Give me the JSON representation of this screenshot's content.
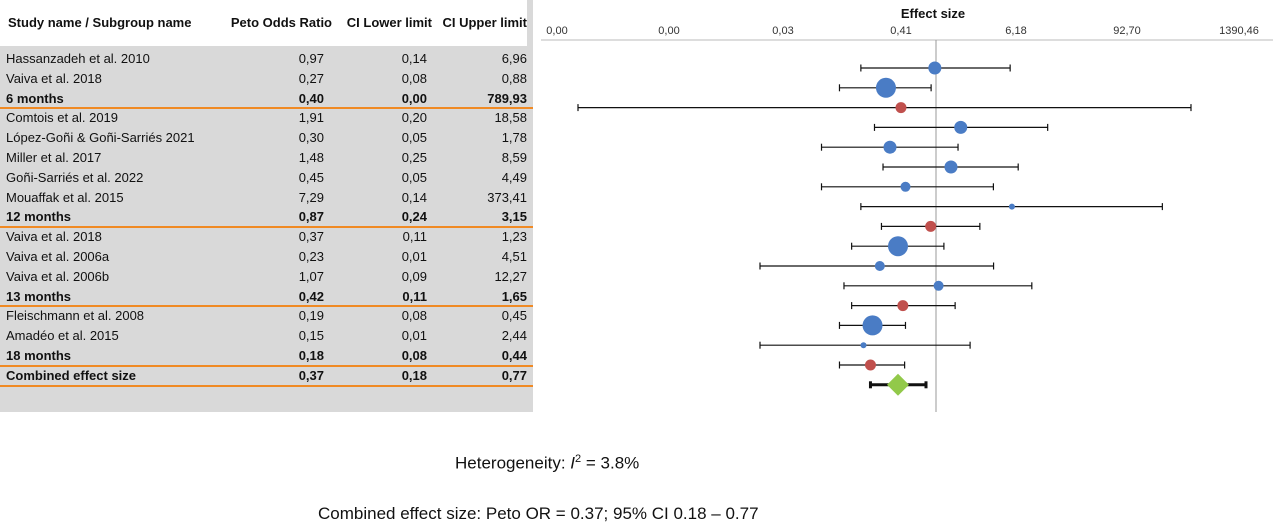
{
  "table": {
    "headers": {
      "name": "Study name / Subgroup name",
      "or": "Peto Odds Ratio",
      "lower": "CI Lower limit",
      "upper": "CI Upper limit"
    },
    "rows": [
      {
        "name": "Hassanzadeh et al. 2010",
        "or": "0,97",
        "lower": "0,14",
        "upper": "6,96",
        "type": "study"
      },
      {
        "name": "Vaiva et al. 2018",
        "or": "0,27",
        "lower": "0,08",
        "upper": "0,88",
        "type": "study"
      },
      {
        "name": "6 months",
        "or": "0,40",
        "lower": "0,00",
        "upper": "789,93",
        "type": "subgroup"
      },
      {
        "name": "Comtois et al. 2019",
        "or": "1,91",
        "lower": "0,20",
        "upper": "18,58",
        "type": "study"
      },
      {
        "name": "López-Goñi & Goñi-Sarriés 2021",
        "or": "0,30",
        "lower": "0,05",
        "upper": "1,78",
        "type": "study"
      },
      {
        "name": "Miller et al. 2017",
        "or": "1,48",
        "lower": "0,25",
        "upper": "8,59",
        "type": "study"
      },
      {
        "name": "Goñi-Sarriés et al. 2022",
        "or": "0,45",
        "lower": "0,05",
        "upper": "4,49",
        "type": "study"
      },
      {
        "name": "Mouaffak et al. 2015",
        "or": "7,29",
        "lower": "0,14",
        "upper": "373,41",
        "type": "study"
      },
      {
        "name": "12 months",
        "or": "0,87",
        "lower": "0,24",
        "upper": "3,15",
        "type": "subgroup"
      },
      {
        "name": "Vaiva et al. 2018",
        "or": "0,37",
        "lower": "0,11",
        "upper": "1,23",
        "type": "study"
      },
      {
        "name": "Vaiva et al. 2006a",
        "or": "0,23",
        "lower": "0,01",
        "upper": "4,51",
        "type": "study"
      },
      {
        "name": "Vaiva et al. 2006b",
        "or": "1,07",
        "lower": "0,09",
        "upper": "12,27",
        "type": "study"
      },
      {
        "name": "13 months",
        "or": "0,42",
        "lower": "0,11",
        "upper": "1,65",
        "type": "subgroup"
      },
      {
        "name": "Fleischmann et al. 2008",
        "or": "0,19",
        "lower": "0,08",
        "upper": "0,45",
        "type": "study"
      },
      {
        "name": "Amadéo et al. 2015",
        "or": "0,15",
        "lower": "0,01",
        "upper": "2,44",
        "type": "study"
      },
      {
        "name": "18 months",
        "or": "0,18",
        "lower": "0,08",
        "upper": "0,44",
        "type": "subgroup"
      },
      {
        "name": "Combined effect size",
        "or": "0,37",
        "lower": "0,18",
        "upper": "0,77",
        "type": "combined"
      }
    ]
  },
  "chart_data": {
    "type": "forest",
    "title": "Effect size",
    "scale": "log",
    "tick_labels": [
      "0,00",
      "0,00",
      "0,03",
      "0,41",
      "6,18",
      "92,70",
      "1390,46"
    ],
    "reference_line": 1,
    "rows": [
      {
        "or": 0.97,
        "lower": 0.14,
        "upper": 6.96,
        "kind": "study",
        "weight": "medium"
      },
      {
        "or": 0.27,
        "lower": 0.08,
        "upper": 0.88,
        "kind": "study",
        "weight": "large"
      },
      {
        "or": 0.4,
        "lower": 0.0,
        "upper": 789.93,
        "kind": "subgroup"
      },
      {
        "or": 1.91,
        "lower": 0.2,
        "upper": 18.58,
        "kind": "study",
        "weight": "medium"
      },
      {
        "or": 0.3,
        "lower": 0.05,
        "upper": 1.78,
        "kind": "study",
        "weight": "medium"
      },
      {
        "or": 1.48,
        "lower": 0.25,
        "upper": 8.59,
        "kind": "study",
        "weight": "medium"
      },
      {
        "or": 0.45,
        "lower": 0.05,
        "upper": 4.49,
        "kind": "study",
        "weight": "small"
      },
      {
        "or": 7.29,
        "lower": 0.14,
        "upper": 373.41,
        "kind": "study",
        "weight": "tiny"
      },
      {
        "or": 0.87,
        "lower": 0.24,
        "upper": 3.15,
        "kind": "subgroup"
      },
      {
        "or": 0.37,
        "lower": 0.11,
        "upper": 1.23,
        "kind": "study",
        "weight": "large"
      },
      {
        "or": 0.23,
        "lower": 0.01,
        "upper": 4.51,
        "kind": "study",
        "weight": "small"
      },
      {
        "or": 1.07,
        "lower": 0.09,
        "upper": 12.27,
        "kind": "study",
        "weight": "small"
      },
      {
        "or": 0.42,
        "lower": 0.11,
        "upper": 1.65,
        "kind": "subgroup"
      },
      {
        "or": 0.19,
        "lower": 0.08,
        "upper": 0.45,
        "kind": "study",
        "weight": "large"
      },
      {
        "or": 0.15,
        "lower": 0.01,
        "upper": 2.44,
        "kind": "study",
        "weight": "tiny"
      },
      {
        "or": 0.18,
        "lower": 0.08,
        "upper": 0.44,
        "kind": "subgroup"
      },
      {
        "or": 0.37,
        "lower": 0.18,
        "upper": 0.77,
        "kind": "combined"
      }
    ],
    "colors": {
      "study": "#4a7cc5",
      "subgroup": "#c0504d",
      "combined": "#92c94a",
      "line": "#111111",
      "reference": "#999999"
    }
  },
  "footer": {
    "heterogeneity_prefix": "Heterogeneity: ",
    "heterogeneity_i": "I",
    "heterogeneity_sup": "2",
    "heterogeneity_value": " = 3.8%",
    "combined": "Combined effect size: Peto OR = 0.37; 95% CI 0.18 – 0.77"
  }
}
